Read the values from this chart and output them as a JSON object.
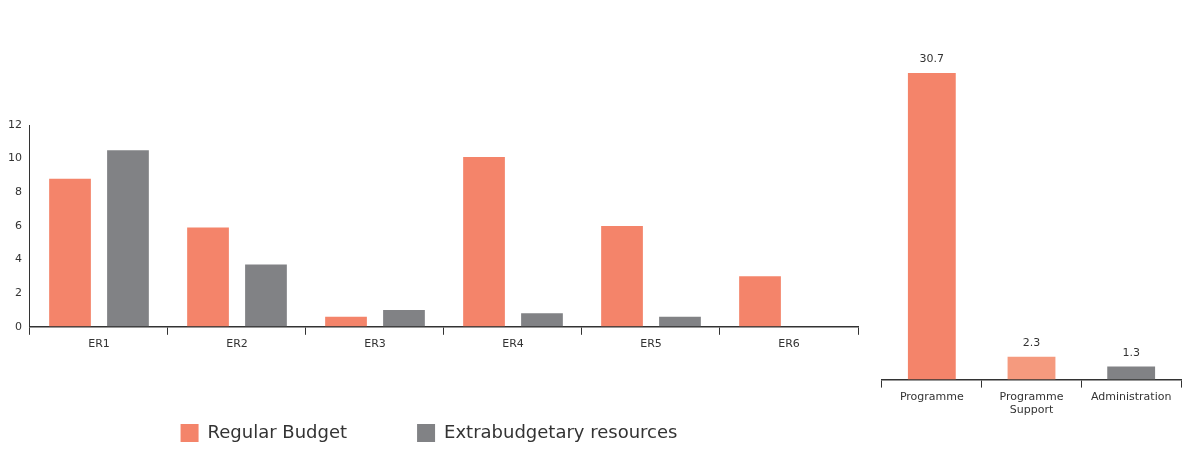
{
  "chart_data": [
    {
      "type": "bar",
      "categories": [
        "ER1",
        "ER2",
        "ER3",
        "ER4",
        "ER5",
        "ER6"
      ],
      "series": [
        {
          "name": "Regular Budget",
          "color": "#f4846a",
          "values": [
            8.8,
            5.9,
            0.6,
            10.1,
            6.0,
            3.0
          ]
        },
        {
          "name": "Extrabudgetary resources",
          "color": "#818285",
          "values": [
            10.5,
            3.7,
            1.0,
            0.8,
            0.6,
            0
          ]
        }
      ],
      "ylim": [
        0,
        12
      ],
      "yticks": [
        0,
        2,
        4,
        6,
        8,
        10,
        12
      ],
      "grid": false,
      "legend": "bottom"
    },
    {
      "type": "bar",
      "categories": [
        "Programme",
        "Programme Support",
        "Administration"
      ],
      "values": [
        30.7,
        2.3,
        1.3
      ],
      "colors": [
        "#f4846a",
        "#f59a7e",
        "#818285"
      ],
      "data_labels": true,
      "tick_labels": "x",
      "grid": false,
      "legend": false
    }
  ]
}
